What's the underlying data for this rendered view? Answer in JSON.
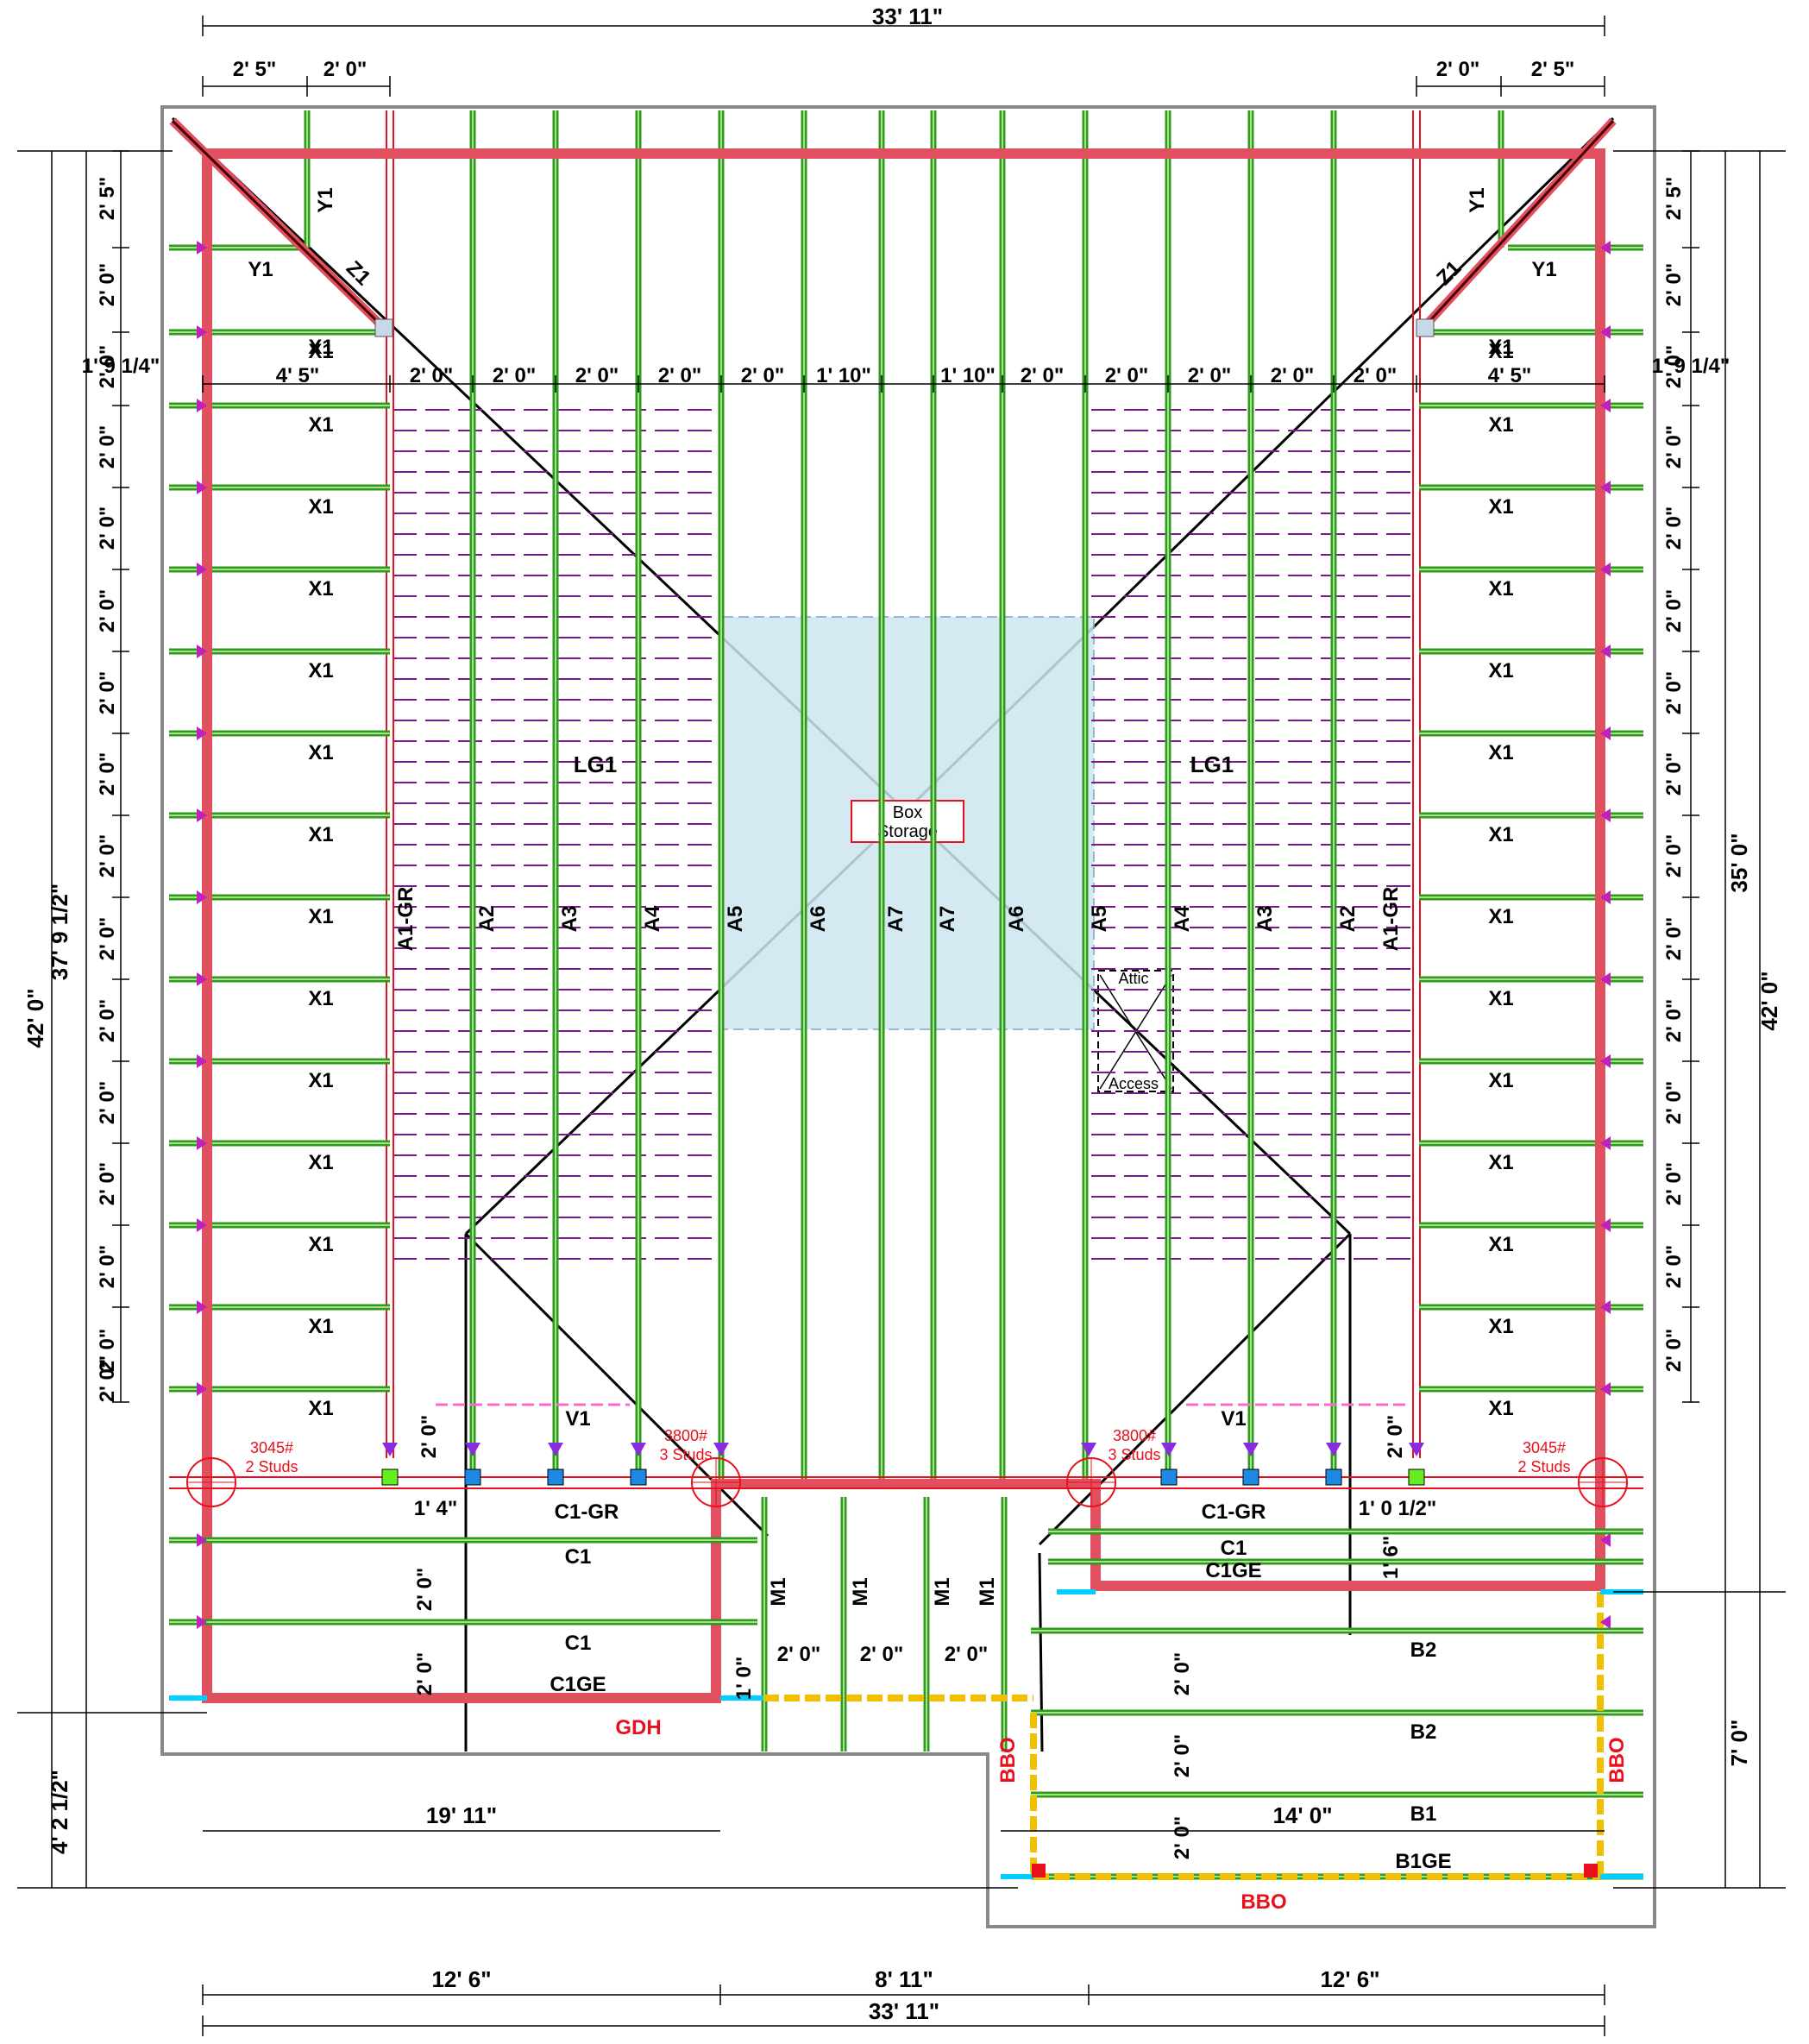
{
  "plan": {
    "overall_width": "33' 11\"",
    "overall_depth": "42' 0\"",
    "left_depth_upper": "37' 9 1/2\"",
    "left_depth_lower": "4' 2 1/2\"",
    "right_depth_upper": "35' 0\"",
    "right_depth_lower": "7' 0\"",
    "corner_dims": [
      "2' 5\"",
      "2' 0\""
    ],
    "side_offset": "1' 9 1/4\"",
    "inner_offset": "4' 5\"",
    "spacing": "2' 0\"",
    "center_spacing": [
      "1' 10\"",
      "1' 10\""
    ],
    "bottom_dims": [
      "12' 6\"",
      "8' 11\"",
      "12' 6\""
    ],
    "garage_width": "19' 11\"",
    "porch_width": "14' 0\"",
    "c1_offset_left": "1' 4\"",
    "c1_offset_right": "1' 0 1/2\"",
    "c1ge_offset": "1' 6\"",
    "m1_offset": "1' 0\"",
    "truss_labels": {
      "x": "X1",
      "y": "Y1",
      "z": "Z1",
      "lg": "LG1",
      "v": "V1",
      "c1gr": "C1-GR",
      "c1": "C1",
      "c1ge": "C1GE",
      "b2": "B2",
      "b1": "B1",
      "b1ge": "B1GE",
      "m1": "M1",
      "a_left": [
        "A1-GR",
        "A2",
        "A3",
        "A4",
        "A5",
        "A6",
        "A7"
      ],
      "a_right": [
        "A7",
        "A6",
        "A5",
        "A4",
        "A3",
        "A2",
        "A1-GR"
      ]
    },
    "box_storage": [
      "Box",
      "Storage"
    ],
    "attic": "Attic",
    "access": "Access",
    "loads": {
      "outer": [
        "3045#",
        "2 Studs"
      ],
      "inner": [
        "3800#",
        "3 Studs"
      ]
    },
    "gdh": "GDH",
    "bbo": "BBO",
    "colors": {
      "girder": "#e05060",
      "truss": "#2e9a1e",
      "truss_light": "#a8e08c",
      "hip_lines": "#000000",
      "dashed": "#7a1a8a",
      "storage": "#cde6f0",
      "bbo": "#f0c000",
      "arrow": "#8a2be2"
    }
  }
}
